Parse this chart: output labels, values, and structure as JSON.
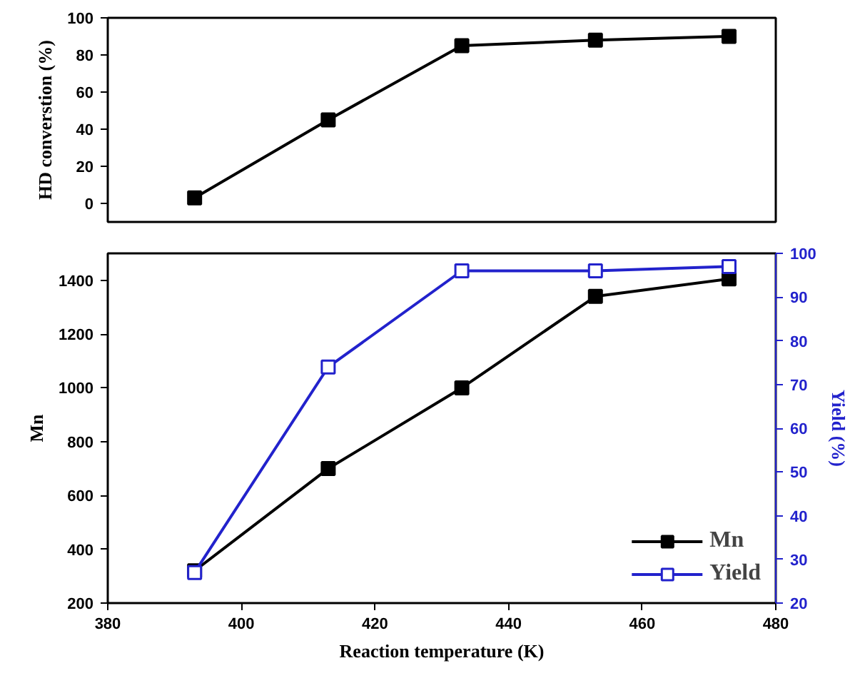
{
  "chart_data": [
    {
      "type": "line",
      "ylabel": "HD converstion (%)",
      "x": [
        393,
        413,
        433,
        453,
        473
      ],
      "series": [
        {
          "color": "#000000",
          "values": [
            3,
            45,
            85,
            88,
            90
          ]
        }
      ],
      "xlim": [
        380,
        480
      ],
      "ylim": [
        -10,
        100
      ],
      "yticks": [
        0,
        20,
        40,
        60,
        80,
        100
      ],
      "tick_labels": "y",
      "marker": "square",
      "grid": false,
      "legend": false
    },
    {
      "type": "line",
      "xlabel": "Reaction temperature (K)",
      "ylabel": "Mn",
      "y2label": "Yield (%)",
      "x": [
        393,
        413,
        433,
        453,
        473
      ],
      "series": [
        {
          "name": "Mn",
          "color": "#000000",
          "values": [
            320,
            700,
            1000,
            1340,
            1405
          ]
        },
        {
          "name": "Yield",
          "color": "#2222cc",
          "axis": "y2",
          "values": [
            27,
            74,
            96,
            96,
            97
          ]
        }
      ],
      "xlim": [
        380,
        480
      ],
      "xticks": [
        380,
        400,
        420,
        440,
        460,
        480
      ],
      "ylim": [
        200,
        1500
      ],
      "yticks": [
        200,
        400,
        600,
        800,
        1000,
        1200,
        1400
      ],
      "y2lim": [
        20,
        100
      ],
      "y2ticks": [
        20,
        30,
        40,
        50,
        60,
        70,
        80,
        90,
        100
      ],
      "marker": "square",
      "grid": false,
      "legend": "bottom right"
    }
  ]
}
